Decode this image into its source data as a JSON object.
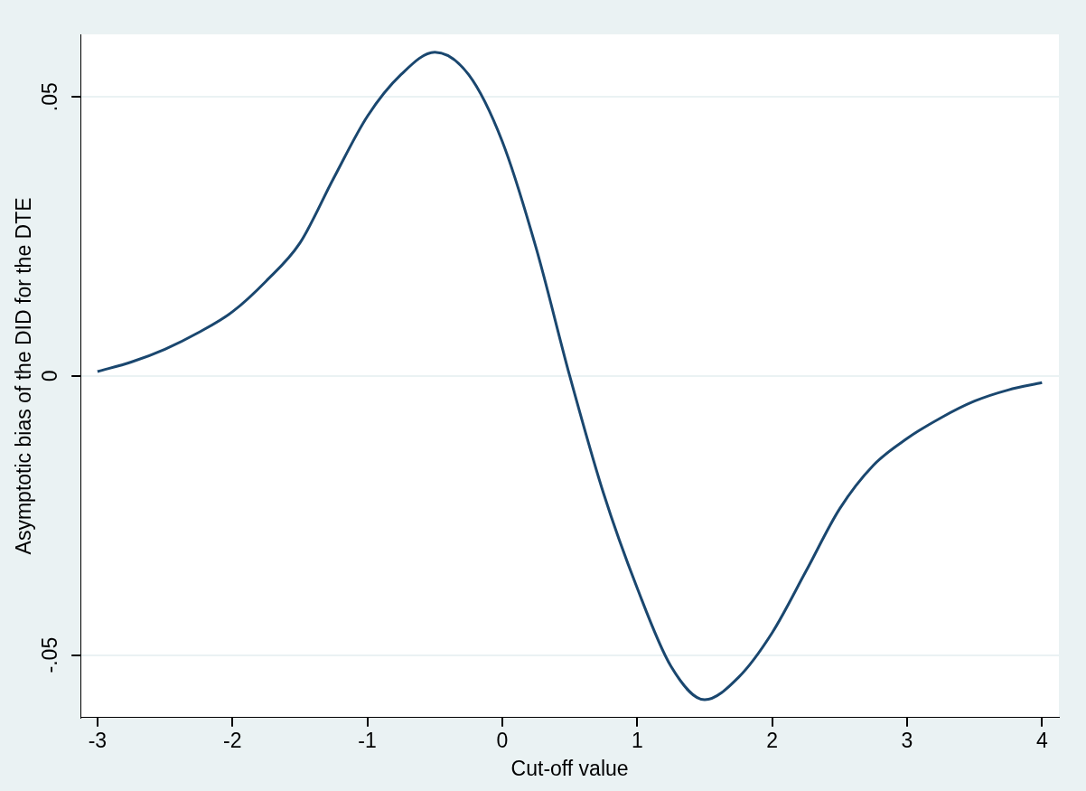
{
  "chart_data": {
    "type": "line",
    "xlabel": "Cut-off value",
    "ylabel": "Asymptotic bias of the DID for the DTE",
    "x": [
      -3,
      -2.75,
      -2.5,
      -2.25,
      -2,
      -1.75,
      -1.5,
      -1.25,
      -1,
      -0.75,
      -0.5,
      -0.25,
      0,
      0.25,
      0.5,
      0.75,
      1,
      1.25,
      1.5,
      1.75,
      2,
      2.25,
      2.5,
      2.75,
      3,
      3.25,
      3.5,
      3.75,
      4
    ],
    "series": [
      {
        "color": "#1a476f",
        "values": [
          0.0008,
          0.0025,
          0.0048,
          0.0078,
          0.0115,
          0.017,
          0.0238,
          0.0354,
          0.0465,
          0.054,
          0.058,
          0.054,
          0.042,
          0.023,
          0.0,
          -0.021,
          -0.038,
          -0.052,
          -0.058,
          -0.054,
          -0.046,
          -0.035,
          -0.0238,
          -0.016,
          -0.0112,
          -0.0075,
          -0.0045,
          -0.0025,
          -0.0012
        ]
      }
    ],
    "xlim": [
      -3.125,
      4.125
    ],
    "xticks": [
      -3,
      -2,
      -1,
      0,
      1,
      2,
      3,
      4
    ],
    "ylim": [
      -0.0612,
      0.0612
    ],
    "yticks": [
      {
        "value": -0.05,
        "label": "-.05"
      },
      0,
      {
        "value": 0.05,
        "label": ".05"
      }
    ],
    "grid": "y",
    "legend": false,
    "marker": "none",
    "line_style": "solid"
  }
}
